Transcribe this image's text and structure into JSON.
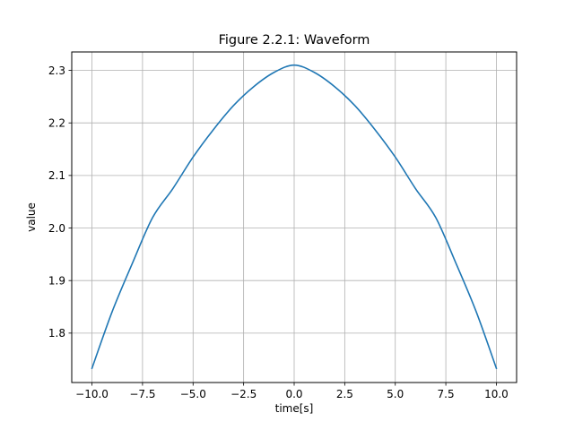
{
  "chart_data": {
    "type": "line",
    "title": "Figure 2.2.1: Waveform",
    "xlabel": "time[s]",
    "ylabel": "value",
    "xlim": [
      -11.0,
      11.0
    ],
    "ylim": [
      1.706,
      2.335
    ],
    "xticks": [
      -10.0,
      -7.5,
      -5.0,
      -2.5,
      0.0,
      2.5,
      5.0,
      7.5,
      10.0
    ],
    "xtick_labels": [
      "−10.0",
      "−7.5",
      "−5.0",
      "−2.5",
      "0.0",
      "2.5",
      "5.0",
      "7.5",
      "10.0"
    ],
    "yticks": [
      1.8,
      1.9,
      2.0,
      2.1,
      2.2,
      2.3
    ],
    "ytick_labels": [
      "1.8",
      "1.9",
      "2.0",
      "2.1",
      "2.2",
      "2.3"
    ],
    "grid": true,
    "series": [
      {
        "color": "#1f77b4",
        "x": [
          -10,
          -9,
          -8,
          -7,
          -6,
          -5,
          -4,
          -3,
          -2,
          -1,
          0,
          1,
          2,
          3,
          4,
          5,
          6,
          7,
          8,
          9,
          10
        ],
        "y": [
          1.733,
          1.841,
          1.933,
          2.02,
          2.075,
          2.135,
          2.187,
          2.233,
          2.269,
          2.296,
          2.31,
          2.296,
          2.269,
          2.233,
          2.187,
          2.135,
          2.075,
          2.02,
          1.933,
          1.841,
          1.733
        ]
      }
    ]
  }
}
